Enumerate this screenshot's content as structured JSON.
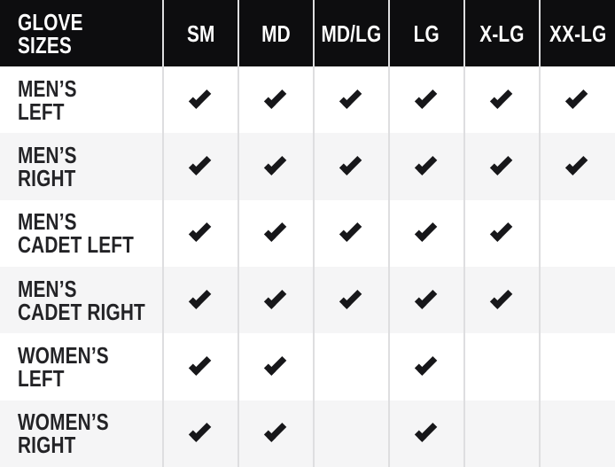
{
  "table": {
    "title_lines": [
      "GLOVE",
      "SIZES"
    ],
    "columns": [
      "SM",
      "MD",
      "MD/LG",
      "LG",
      "X-LG",
      "XX-LG"
    ],
    "rows": [
      {
        "label_lines": [
          "MEN’S",
          "LEFT"
        ],
        "checks": [
          true,
          true,
          true,
          true,
          true,
          true
        ]
      },
      {
        "label_lines": [
          "MEN’S",
          "RIGHT"
        ],
        "checks": [
          true,
          true,
          true,
          true,
          true,
          true
        ]
      },
      {
        "label_lines": [
          "MEN’S",
          "CADET LEFT"
        ],
        "checks": [
          true,
          true,
          true,
          true,
          true,
          false
        ]
      },
      {
        "label_lines": [
          "MEN’S",
          "CADET RIGHT"
        ],
        "checks": [
          true,
          true,
          true,
          true,
          true,
          false
        ]
      },
      {
        "label_lines": [
          "WOMEN’S",
          "LEFT"
        ],
        "checks": [
          true,
          true,
          false,
          true,
          false,
          false
        ]
      },
      {
        "label_lines": [
          "WOMEN’S",
          "RIGHT"
        ],
        "checks": [
          true,
          true,
          false,
          true,
          false,
          false
        ]
      }
    ],
    "colors": {
      "header_bg": "#0d0d0f",
      "header_text": "#ffffff",
      "row_bg": "#ffffff",
      "row_alt_bg": "#f5f5f6",
      "separator": "#dedee0",
      "label_text": "#232326",
      "check": "#17171a"
    },
    "check_icon": "checkmark-icon"
  }
}
